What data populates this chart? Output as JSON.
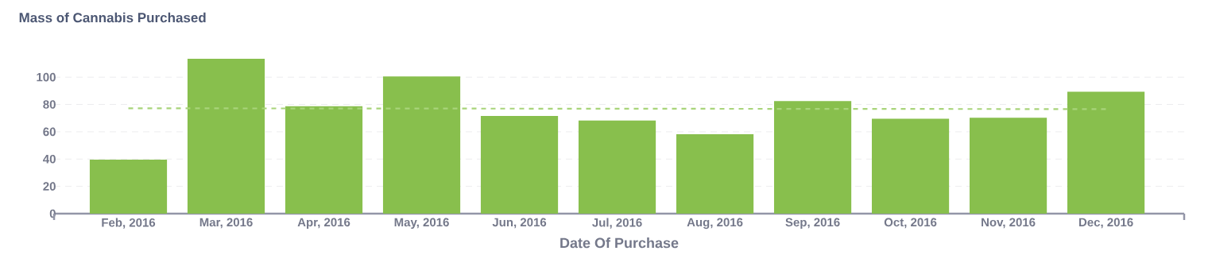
{
  "chart_data": {
    "type": "bar",
    "title": "Mass of Cannabis Purchased",
    "xlabel": "Date Of Purchase",
    "categories": [
      "Feb, 2016",
      "Mar, 2016",
      "Apr, 2016",
      "May, 2016",
      "Jun, 2016",
      "Jul, 2016",
      "Aug, 2016",
      "Sep, 2016",
      "Oct, 2016",
      "Nov, 2016",
      "Dec, 2016"
    ],
    "series": [
      {
        "color": "#88bf4d",
        "values": [
          39.6,
          113.5,
          78.7,
          100.6,
          71.6,
          68.3,
          58.2,
          82.5,
          69.5,
          70.3,
          89.3
        ]
      },
      {
        "type": "line",
        "color": "#a8d47a",
        "line_style": "dashed",
        "marker": "none",
        "values": [
          77.2,
          null,
          null,
          null,
          null,
          null,
          null,
          null,
          null,
          null,
          76.6
        ]
      }
    ],
    "ylim": [
      0,
      113.5
    ],
    "yticks": [
      0,
      20,
      40,
      60,
      80,
      100
    ],
    "grid": "y"
  }
}
